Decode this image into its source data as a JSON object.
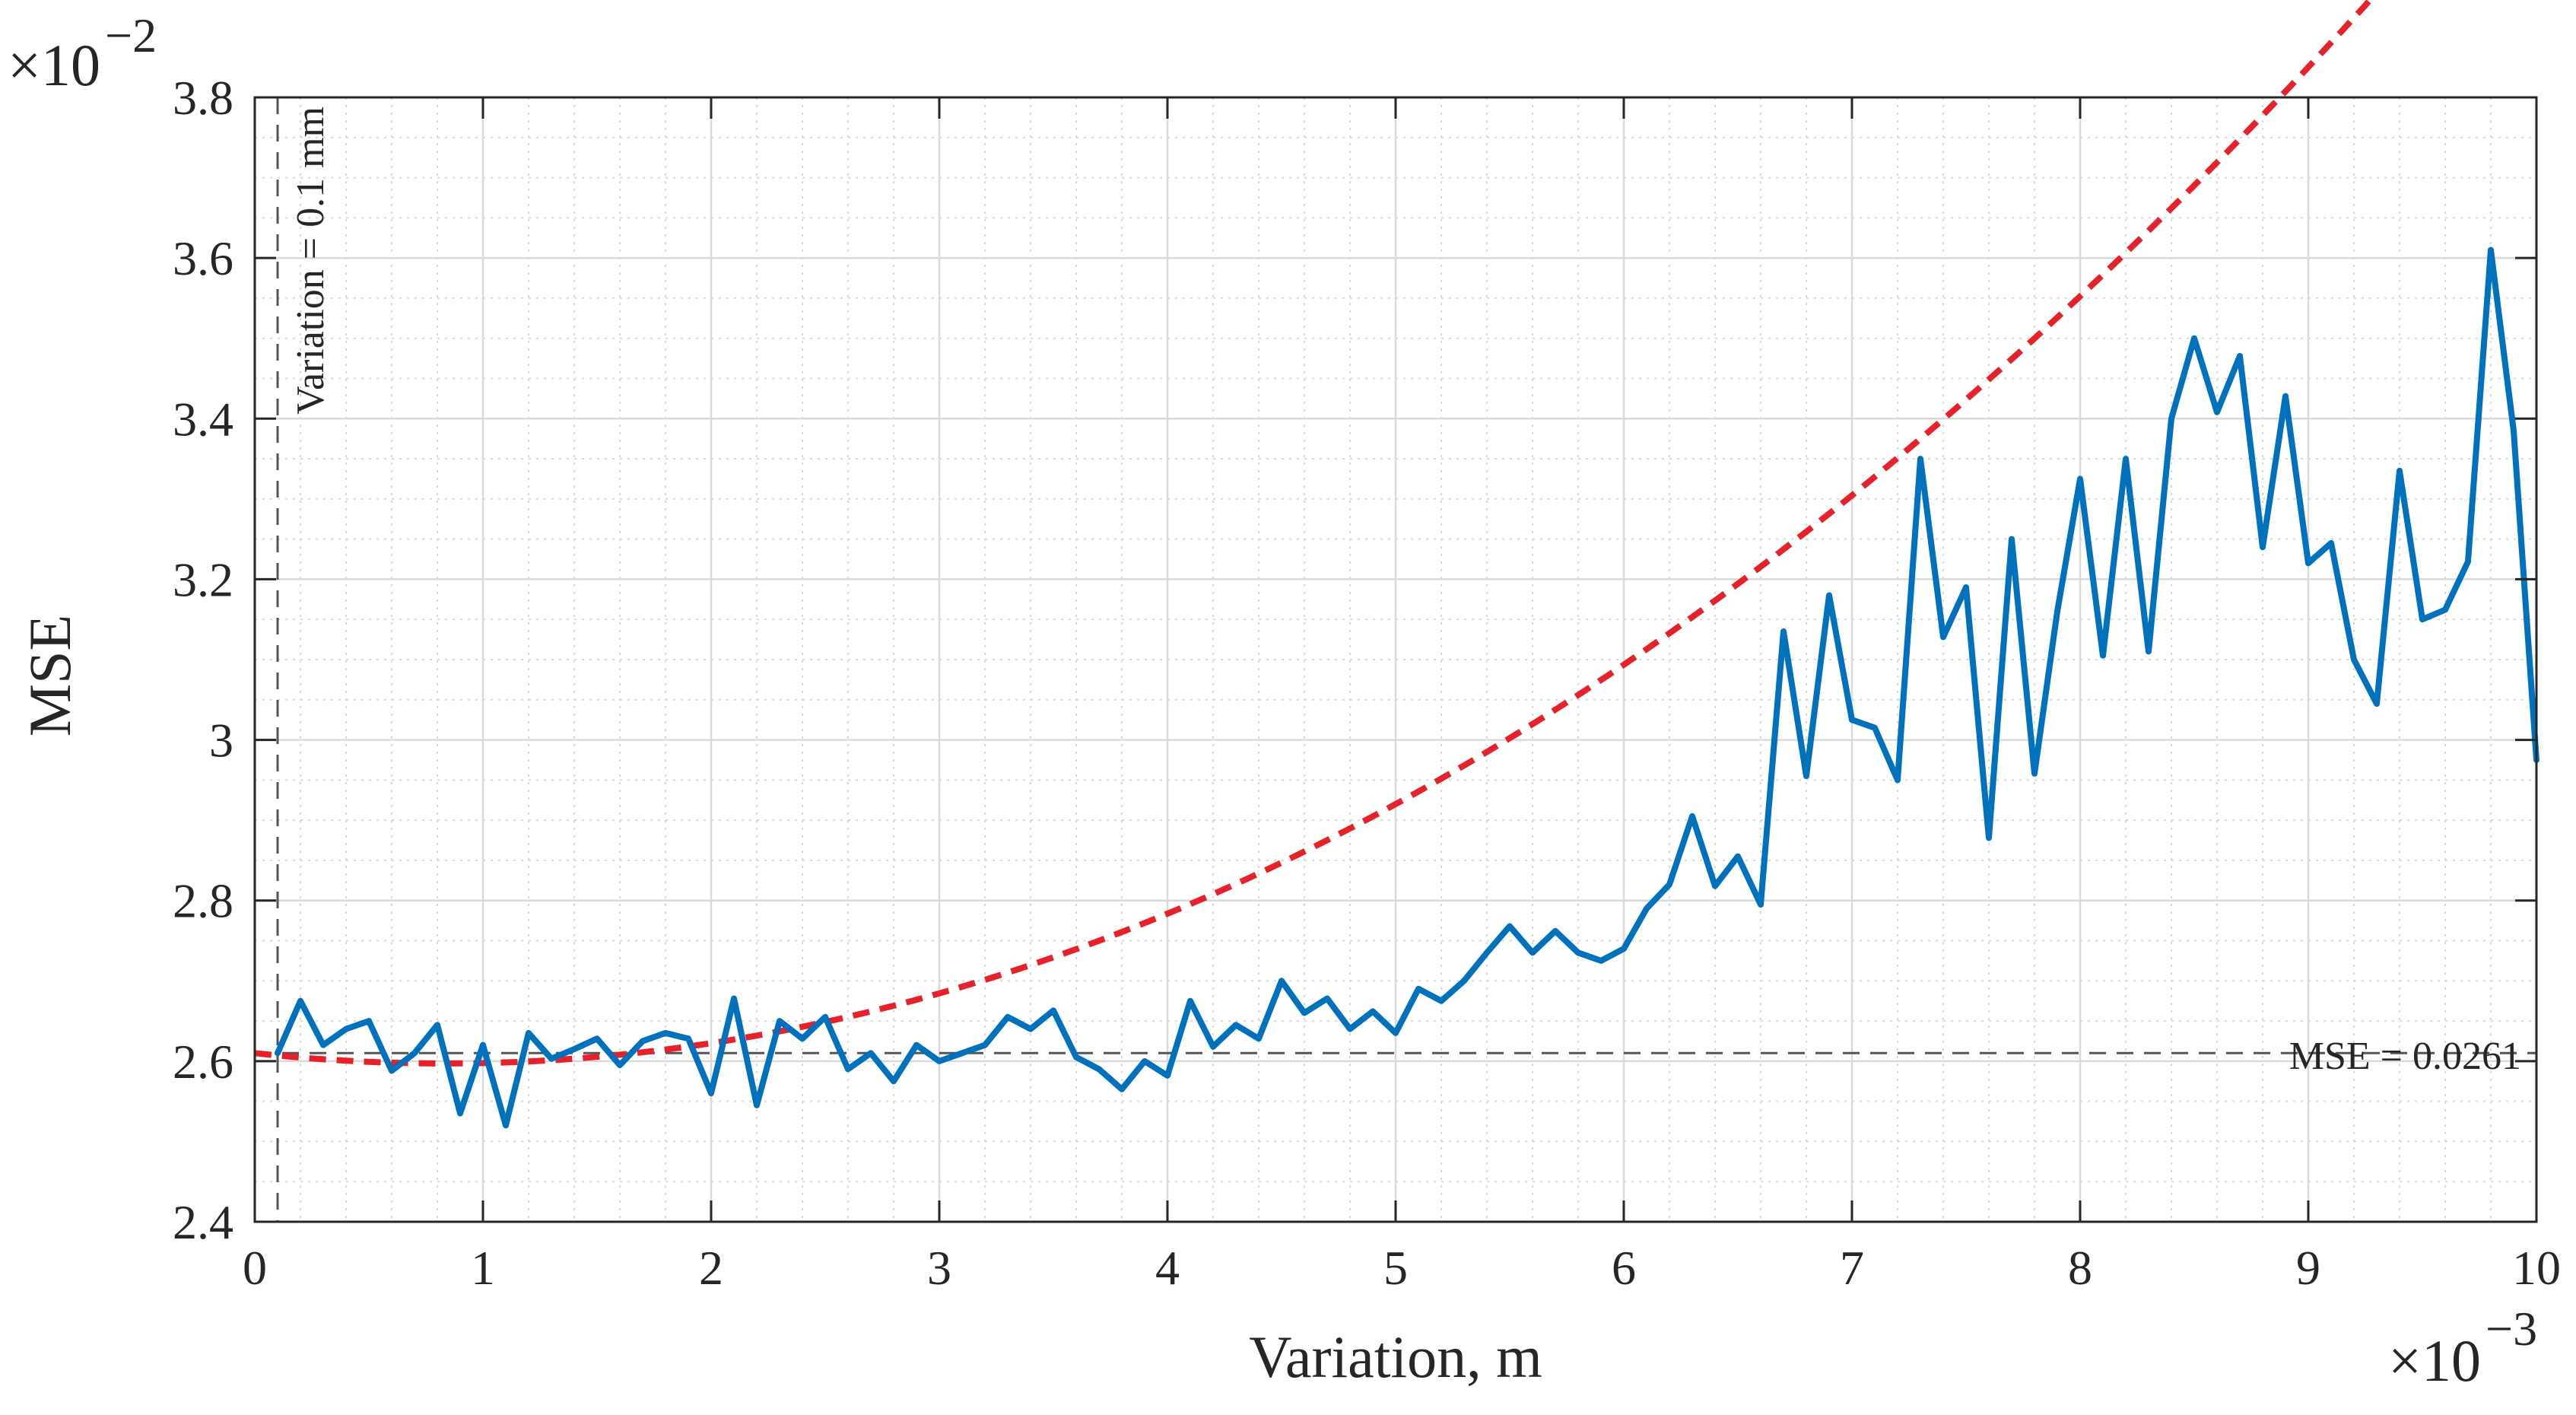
{
  "chart_data": {
    "type": "line",
    "xlabel": "Variation, m",
    "ylabel": "MSE",
    "x_exponent_label": "×10",
    "x_exponent_power": "−3",
    "y_exponent_label": "×10",
    "y_exponent_power": "−2",
    "xlim": [
      0,
      0.01
    ],
    "ylim": [
      0.024,
      0.038
    ],
    "x_ticks": [
      0,
      0.001,
      0.002,
      0.003,
      0.004,
      0.005,
      0.006,
      0.007,
      0.008,
      0.009,
      0.01
    ],
    "x_tick_labels": [
      "0",
      "1",
      "2",
      "3",
      "4",
      "5",
      "6",
      "7",
      "8",
      "9",
      "10"
    ],
    "y_ticks": [
      0.024,
      0.026,
      0.028,
      0.03,
      0.032,
      0.034,
      0.036,
      0.038
    ],
    "y_tick_labels": [
      "2.4",
      "2.6",
      "2.8",
      "3",
      "3.2",
      "3.4",
      "3.6",
      "3.8"
    ],
    "grid": true,
    "minor_grid": true,
    "colors": {
      "series": "#0072BD",
      "fit": "#E8202A",
      "reference": "#555555",
      "grid": "#d9d9d9"
    },
    "series": [
      {
        "style": "solid",
        "x": [
          0.0001,
          0.0002,
          0.0003,
          0.0004,
          0.0005,
          0.0006,
          0.0007,
          0.0008,
          0.0009,
          0.001,
          0.0011,
          0.0012,
          0.0013,
          0.0014,
          0.0015,
          0.0016,
          0.0017,
          0.0018,
          0.0019,
          0.002,
          0.0021,
          0.0022,
          0.0023,
          0.0024,
          0.0025,
          0.0026,
          0.0027,
          0.0028,
          0.0029,
          0.003,
          0.0031,
          0.0032,
          0.0033,
          0.0034,
          0.0035,
          0.0036,
          0.0037,
          0.0038,
          0.0039,
          0.004,
          0.0041,
          0.0042,
          0.0043,
          0.0044,
          0.0045,
          0.0046,
          0.0047,
          0.0048,
          0.0049,
          0.005,
          0.0051,
          0.0052,
          0.0053,
          0.0054,
          0.0055,
          0.0056,
          0.0057,
          0.0058,
          0.0059,
          0.006,
          0.0061,
          0.0062,
          0.0063,
          0.0064,
          0.0065,
          0.0066,
          0.0067,
          0.0068,
          0.0069,
          0.007,
          0.0071,
          0.0072,
          0.0073,
          0.0074,
          0.0075,
          0.0076,
          0.0077,
          0.0078,
          0.0079,
          0.008,
          0.0081,
          0.0082,
          0.0083,
          0.0084,
          0.0085,
          0.0086,
          0.0087,
          0.0088,
          0.0089,
          0.009,
          0.0091,
          0.0092,
          0.0093,
          0.0094,
          0.0095,
          0.0096,
          0.0097,
          0.0098,
          0.0099,
          0.01
        ],
        "y": [
          0.0261,
          0.02675,
          0.0262,
          0.0264,
          0.0265,
          0.02588,
          0.0261,
          0.02645,
          0.02535,
          0.0262,
          0.0252,
          0.02635,
          0.02603,
          0.02615,
          0.02628,
          0.02595,
          0.02625,
          0.02635,
          0.02628,
          0.0256,
          0.02678,
          0.02545,
          0.0265,
          0.02628,
          0.02655,
          0.0259,
          0.0261,
          0.02575,
          0.0262,
          0.026,
          0.0261,
          0.0262,
          0.02655,
          0.0264,
          0.02663,
          0.02605,
          0.0259,
          0.02565,
          0.026,
          0.02582,
          0.02675,
          0.02618,
          0.02645,
          0.02628,
          0.027,
          0.0266,
          0.02678,
          0.0264,
          0.02662,
          0.02635,
          0.0269,
          0.02675,
          0.027,
          0.02735,
          0.02768,
          0.02735,
          0.02762,
          0.02735,
          0.02725,
          0.0274,
          0.0279,
          0.0282,
          0.02905,
          0.02818,
          0.02855,
          0.02795,
          0.03135,
          0.02955,
          0.0318,
          0.03025,
          0.03015,
          0.0295,
          0.0335,
          0.03128,
          0.0319,
          0.02878,
          0.0325,
          0.02958,
          0.0316,
          0.03325,
          0.03105,
          0.0335,
          0.0311,
          0.034,
          0.035,
          0.03408,
          0.03478,
          0.0324,
          0.03428,
          0.0322,
          0.03245,
          0.031,
          0.03045,
          0.03335,
          0.0315,
          0.03162,
          0.03222,
          0.0361,
          0.03385,
          0.02975
        ]
      },
      {
        "style": "dashed",
        "fit_quadratic": [
          0.0261,
          -0.31,
          186
        ],
        "x_start": 0.0,
        "x_end": 0.01
      }
    ],
    "annotations": [
      {
        "text": "Variation = 0.1 mm",
        "type": "vertical-reference",
        "x": 0.0001
      },
      {
        "text": "MSE = 0.0261",
        "type": "horizontal-reference",
        "y": 0.0261
      }
    ]
  }
}
